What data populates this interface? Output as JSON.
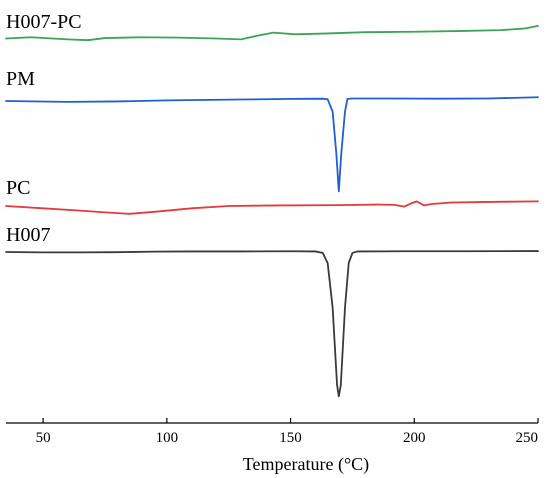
{
  "chart_data": {
    "type": "line",
    "title": "",
    "xlabel": "Temperature (°C)",
    "ylabel": "",
    "xlim": [
      35,
      250
    ],
    "xticks": [
      50,
      100,
      150,
      200,
      250
    ],
    "grid": false,
    "legend": "labels above each curve",
    "series": [
      {
        "name": "H007-PC",
        "color": "#3aa655",
        "points": [
          [
            35,
            0.0
          ],
          [
            45,
            0.03
          ],
          [
            60,
            -0.02
          ],
          [
            68,
            -0.04
          ],
          [
            75,
            0.01
          ],
          [
            90,
            0.03
          ],
          [
            105,
            0.02
          ],
          [
            120,
            0.0
          ],
          [
            130,
            -0.02
          ],
          [
            136,
            0.06
          ],
          [
            143,
            0.14
          ],
          [
            152,
            0.1
          ],
          [
            165,
            0.12
          ],
          [
            180,
            0.15
          ],
          [
            200,
            0.16
          ],
          [
            220,
            0.18
          ],
          [
            235,
            0.2
          ],
          [
            245,
            0.24
          ],
          [
            250,
            0.3
          ]
        ]
      },
      {
        "name": "PM",
        "color": "#1f5fd0",
        "points": [
          [
            35,
            0.0
          ],
          [
            60,
            -0.04
          ],
          [
            80,
            -0.02
          ],
          [
            100,
            0.03
          ],
          [
            130,
            0.07
          ],
          [
            150,
            0.1
          ],
          [
            163,
            0.11
          ],
          [
            165,
            0.08
          ],
          [
            167,
            -0.5
          ],
          [
            168.5,
            -2.5
          ],
          [
            169.5,
            -4.3
          ],
          [
            170.5,
            -2.5
          ],
          [
            172,
            -0.5
          ],
          [
            173,
            0.1
          ],
          [
            175,
            0.12
          ],
          [
            190,
            0.12
          ],
          [
            210,
            0.11
          ],
          [
            230,
            0.12
          ],
          [
            250,
            0.18
          ]
        ]
      },
      {
        "name": "PC",
        "color": "#e33b3b",
        "points": [
          [
            35,
            0.0
          ],
          [
            50,
            -0.08
          ],
          [
            65,
            -0.16
          ],
          [
            75,
            -0.22
          ],
          [
            85,
            -0.27
          ],
          [
            95,
            -0.2
          ],
          [
            110,
            -0.08
          ],
          [
            125,
            0.0
          ],
          [
            145,
            0.02
          ],
          [
            170,
            0.03
          ],
          [
            185,
            0.05
          ],
          [
            192,
            0.04
          ],
          [
            196,
            -0.02
          ],
          [
            199,
            0.1
          ],
          [
            201,
            0.16
          ],
          [
            204,
            0.02
          ],
          [
            207,
            0.07
          ],
          [
            215,
            0.12
          ],
          [
            230,
            0.14
          ],
          [
            250,
            0.16
          ]
        ]
      },
      {
        "name": "H007",
        "color": "#3a3a3a",
        "points": [
          [
            35,
            0.0
          ],
          [
            50,
            -0.02
          ],
          [
            65,
            -0.02
          ],
          [
            80,
            -0.01
          ],
          [
            95,
            0.02
          ],
          [
            110,
            0.03
          ],
          [
            130,
            0.03
          ],
          [
            150,
            0.04
          ],
          [
            160,
            0.03
          ],
          [
            163,
            -0.05
          ],
          [
            165,
            -0.6
          ],
          [
            167,
            -3.0
          ],
          [
            168.8,
            -7.2
          ],
          [
            169.5,
            -7.8
          ],
          [
            170.3,
            -7.2
          ],
          [
            172,
            -3.0
          ],
          [
            173.5,
            -0.6
          ],
          [
            175,
            -0.05
          ],
          [
            177,
            0.03
          ],
          [
            195,
            0.04
          ],
          [
            220,
            0.04
          ],
          [
            250,
            0.05
          ]
        ]
      }
    ]
  }
}
